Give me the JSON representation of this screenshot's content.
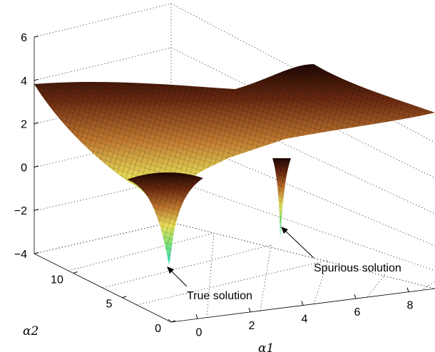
{
  "chart_data": {
    "type": "surface",
    "title": "",
    "xlabel": "α1",
    "ylabel": "α2",
    "zlabel": "",
    "x_ticks": [
      "0",
      "2",
      "4",
      "6",
      "8"
    ],
    "y_ticks": [
      "0",
      "5",
      "10"
    ],
    "z_ticks": [
      "−4",
      "−2",
      "0",
      "2",
      "4",
      "6"
    ],
    "xlim": [
      -1,
      9
    ],
    "ylim": [
      0,
      14
    ],
    "zlim": [
      -4,
      6
    ],
    "grid": true,
    "colormap": [
      "#3ee6c8",
      "#7be27a",
      "#e8e05a",
      "#c07830",
      "#6a2a10",
      "#1e0604"
    ],
    "surface_samples": [
      {
        "x": 0,
        "y": 14,
        "z": 3.9
      },
      {
        "x": 0,
        "y": 6,
        "z": -0.3
      },
      {
        "x": 2,
        "y": 9,
        "z": 1.5
      },
      {
        "x": 1,
        "y": 3,
        "z": -3.8
      },
      {
        "x": 4,
        "y": 11,
        "z": 4.0
      },
      {
        "x": 6,
        "y": 7,
        "z": 2.4
      },
      {
        "x": 7,
        "y": 2,
        "z": -3.4
      },
      {
        "x": 9,
        "y": 5,
        "z": 2.5
      }
    ],
    "annotations": [
      {
        "text": "True solution",
        "x": 1,
        "y": 3,
        "z": -3.8
      },
      {
        "text": "Spurious solution",
        "x": 7,
        "y": 2,
        "z": -3.4
      }
    ]
  }
}
